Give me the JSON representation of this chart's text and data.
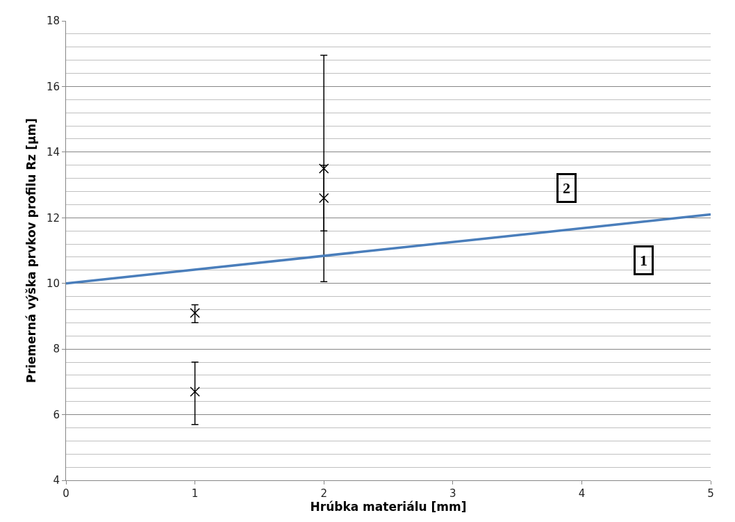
{
  "chart_data": {
    "type": "scatter",
    "xlabel": "Hrúbka materiálu [mm]",
    "ylabel": "Priemerná výška prvkov profilu Rz [µm]",
    "xlim": [
      0,
      5
    ],
    "xticks": [
      0,
      1,
      2,
      3,
      4,
      5
    ],
    "ylim": [
      4,
      18
    ],
    "yticks": [
      4,
      {
        "value": 4.4,
        "label": null
      },
      {
        "value": 4.8,
        "label": null
      },
      {
        "value": 5.2,
        "label": null
      },
      {
        "value": 5.6,
        "label": null
      },
      6,
      {
        "value": 6.4,
        "label": null
      },
      {
        "value": 6.8,
        "label": null
      },
      {
        "value": 7.2,
        "label": null
      },
      {
        "value": 7.6,
        "label": null
      },
      8,
      {
        "value": 8.4,
        "label": null
      },
      {
        "value": 8.8,
        "label": null
      },
      {
        "value": 9.2,
        "label": null
      },
      {
        "value": 9.6,
        "label": null
      },
      10,
      {
        "value": 10.4,
        "label": null
      },
      {
        "value": 10.8,
        "label": null
      },
      {
        "value": 11.2,
        "label": null
      },
      {
        "value": 11.6,
        "label": null
      },
      12,
      {
        "value": 12.4,
        "label": null
      },
      {
        "value": 12.8,
        "label": null
      },
      {
        "value": 13.2,
        "label": null
      },
      {
        "value": 13.6,
        "label": null
      },
      14,
      {
        "value": 14.4,
        "label": null
      },
      {
        "value": 14.8,
        "label": null
      },
      {
        "value": 15.2,
        "label": null
      },
      {
        "value": 15.6,
        "label": null
      },
      16,
      {
        "value": 16.4,
        "label": null
      },
      {
        "value": 16.8,
        "label": null
      },
      {
        "value": 17.2,
        "label": null
      },
      {
        "value": 17.6,
        "label": null
      },
      18
    ],
    "grid": "y",
    "series": [
      {
        "marker": "cross",
        "color": "#000000",
        "x": [
          1,
          1,
          2,
          2
        ],
        "values": [
          9.1,
          6.7,
          13.5,
          12.6
        ],
        "errors": [
          [
            8.8,
            9.35
          ],
          [
            5.7,
            7.6
          ],
          [
            10.05,
            16.95
          ],
          [
            11.6,
            13.6
          ]
        ]
      },
      {
        "type": "line",
        "marker": "none",
        "color": "#4a7ebb",
        "x": [
          0,
          5
        ],
        "values": [
          10,
          12.1
        ]
      }
    ],
    "annotations": [
      {
        "text": "2",
        "x": 3.88,
        "y": 12.9
      },
      {
        "text": "1",
        "x": 4.48,
        "y": 10.7
      }
    ]
  }
}
